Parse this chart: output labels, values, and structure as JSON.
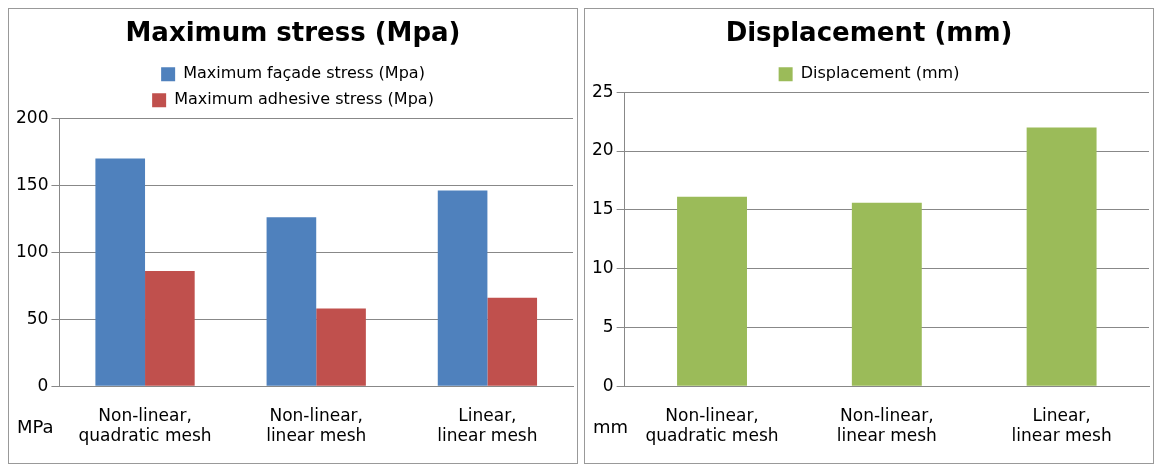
{
  "chart_data": [
    {
      "type": "bar",
      "title": "Maximum stress (Mpa)",
      "ylabel": "MPa",
      "categories": [
        "Non-linear, quadratic mesh",
        "Non-linear, linear mesh",
        "Linear, linear mesh"
      ],
      "series": [
        {
          "name": "Maximum façade stress (Mpa)",
          "color": "#4f81bd",
          "values": [
            170,
            126,
            146
          ]
        },
        {
          "name": "Maximum adhesive stress (Mpa)",
          "color": "#c0504d",
          "values": [
            86,
            58,
            66
          ]
        }
      ],
      "ylim": [
        0,
        200
      ],
      "yticks": [
        0,
        50,
        100,
        150,
        200
      ],
      "grid": "y",
      "legend": "top"
    },
    {
      "type": "bar",
      "title": "Displacement (mm)",
      "ylabel": "mm",
      "categories": [
        "Non-linear, quadratic mesh",
        "Non-linear, linear mesh",
        "Linear, linear mesh"
      ],
      "series": [
        {
          "name": "Displacement (mm)",
          "color": "#9bbb59",
          "values": [
            16.1,
            15.6,
            22.0
          ]
        }
      ],
      "ylim": [
        0,
        25
      ],
      "yticks": [
        0,
        5,
        10,
        15,
        20,
        25
      ],
      "grid": "y",
      "legend": "top"
    }
  ]
}
